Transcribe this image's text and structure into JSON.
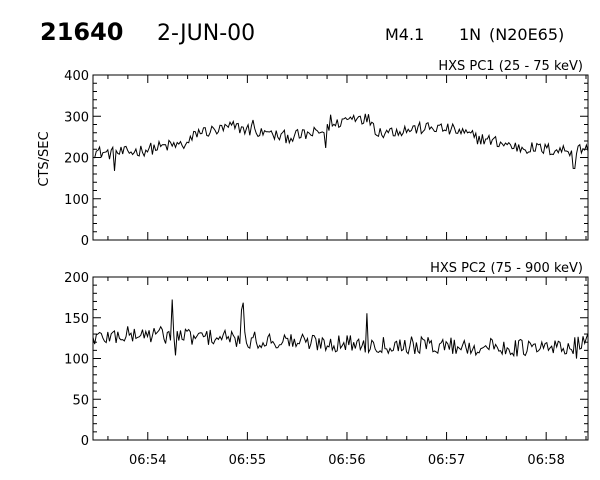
{
  "header": {
    "event_id": "21640",
    "date": "2-JUN-00",
    "goes_class": "M4.1",
    "h_alpha_class": "1N",
    "location": "(N20E65)"
  },
  "chart_data": [
    {
      "type": "line",
      "title": "HXS PC1 (25 - 75 keV)",
      "ylabel": "CTS/SEC",
      "xlabel": "",
      "ylim": [
        0,
        400
      ],
      "yticks": [
        0,
        100,
        200,
        300,
        400
      ],
      "xlim": [
        53.45,
        58.42
      ],
      "xticks": [
        54,
        55,
        56,
        57,
        58
      ],
      "xtick_labels": [
        "06:54",
        "06:55",
        "06:56",
        "06:57",
        "06:58"
      ],
      "xtick_labels_visible": false,
      "grid": false,
      "series": [
        {
          "x": [
            53.45,
            53.6,
            53.8,
            54.0,
            54.2,
            54.4,
            54.5,
            54.7,
            54.85,
            55.0,
            55.2,
            55.4,
            55.6,
            55.75,
            55.85,
            55.95,
            56.1,
            56.25,
            56.3,
            56.5,
            56.7,
            56.9,
            57.0,
            57.1,
            57.3,
            57.5,
            57.7,
            57.9,
            58.1,
            58.3,
            58.42
          ],
          "values": [
            215,
            210,
            212,
            220,
            228,
            232,
            262,
            265,
            275,
            268,
            255,
            250,
            255,
            262,
            272,
            290,
            300,
            290,
            262,
            265,
            270,
            272,
            268,
            265,
            248,
            238,
            225,
            222,
            218,
            218,
            225
          ],
          "noise": 14
        }
      ]
    },
    {
      "type": "line",
      "title": "HXS PC2 (75 - 900 keV)",
      "ylabel": "",
      "xlabel": "",
      "ylim": [
        0,
        200
      ],
      "yticks": [
        0,
        50,
        100,
        150,
        200
      ],
      "xlim": [
        53.45,
        58.42
      ],
      "xticks": [
        54,
        55,
        56,
        57,
        58
      ],
      "xtick_labels": [
        "06:54",
        "06:55",
        "06:56",
        "06:57",
        "06:58"
      ],
      "xtick_labels_visible": true,
      "grid": false,
      "series": [
        {
          "x": [
            53.45,
            53.7,
            54.0,
            54.3,
            54.5,
            54.7,
            55.0,
            55.3,
            55.6,
            55.9,
            56.2,
            56.5,
            56.8,
            57.0,
            57.3,
            57.6,
            57.9,
            58.2,
            58.42
          ],
          "values": [
            125,
            128,
            130,
            128,
            126,
            126,
            122,
            122,
            120,
            119,
            118,
            117,
            116,
            116,
            114,
            114,
            112,
            114,
            120
          ],
          "noise": 10
        }
      ]
    }
  ]
}
